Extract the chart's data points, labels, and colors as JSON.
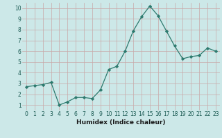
{
  "x": [
    0,
    1,
    2,
    3,
    4,
    5,
    6,
    7,
    8,
    9,
    10,
    11,
    12,
    13,
    14,
    15,
    16,
    17,
    18,
    19,
    20,
    21,
    22,
    23
  ],
  "y": [
    2.7,
    2.8,
    2.9,
    3.1,
    1.0,
    1.3,
    1.7,
    1.7,
    1.6,
    2.4,
    4.3,
    4.6,
    6.0,
    7.9,
    9.2,
    10.2,
    9.3,
    7.9,
    6.5,
    5.3,
    5.5,
    5.6,
    6.3,
    6.0
  ],
  "xlabel": "Humidex (Indice chaleur)",
  "ylim": [
    0.5,
    10.5
  ],
  "xlim": [
    -0.5,
    23.5
  ],
  "yticks": [
    1,
    2,
    3,
    4,
    5,
    6,
    7,
    8,
    9,
    10
  ],
  "xticks": [
    0,
    1,
    2,
    3,
    4,
    5,
    6,
    7,
    8,
    9,
    10,
    11,
    12,
    13,
    14,
    15,
    16,
    17,
    18,
    19,
    20,
    21,
    22,
    23
  ],
  "line_color": "#2d7a6e",
  "marker_color": "#2d7a6e",
  "bg_color": "#cce8e8",
  "grid_color": "#c9a8a8",
  "axis_bg": "#cce8e8",
  "tick_color": "#1a5a52",
  "xlabel_color": "#1a1a1a",
  "tick_fontsize": 5.5,
  "xlabel_fontsize": 6.5
}
